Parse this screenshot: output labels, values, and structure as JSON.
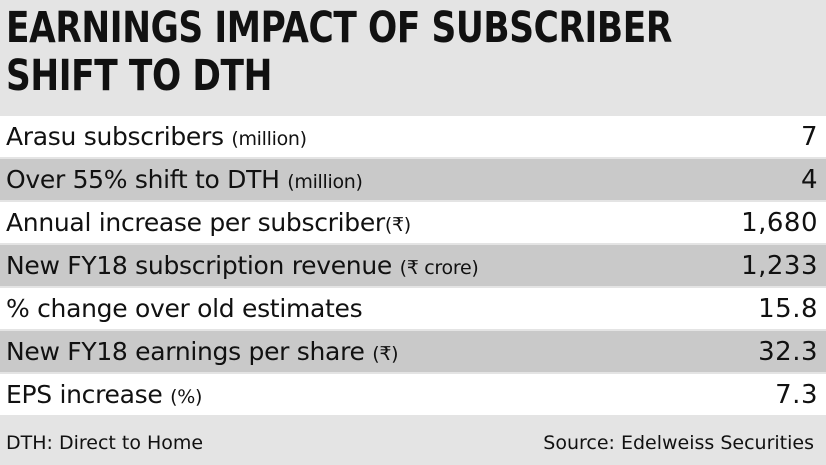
{
  "title_line1": "EARNINGS IMPACT OF SUBSCRIBER",
  "title_line2": "SHIFT TO DTH",
  "chart_data": {
    "type": "table",
    "rows": [
      {
        "label": "Arasu subscribers",
        "unit": "(million)",
        "value": "7"
      },
      {
        "label": "Over 55% shift to DTH",
        "unit": "(million)",
        "value": "4"
      },
      {
        "label": "Annual increase per subscriber",
        "unit": "(₹)",
        "value": "1,680"
      },
      {
        "label": "New FY18 subscription revenue",
        "unit": "(₹ crore)",
        "value": "1,233"
      },
      {
        "label": "% change over old estimates",
        "unit": "",
        "value": "15.8"
      },
      {
        "label": "New FY18 earnings per share",
        "unit": "(₹)",
        "value": "32.3"
      },
      {
        "label": "EPS increase",
        "unit": "(%)",
        "value": "7.3"
      }
    ]
  },
  "footnote": "DTH: Direct to Home",
  "source": "Source: Edelweiss Securities",
  "colors": {
    "background": "#e4e4e4",
    "row_white": "#ffffff",
    "row_grey": "#c9c9c9",
    "text": "#111111"
  }
}
